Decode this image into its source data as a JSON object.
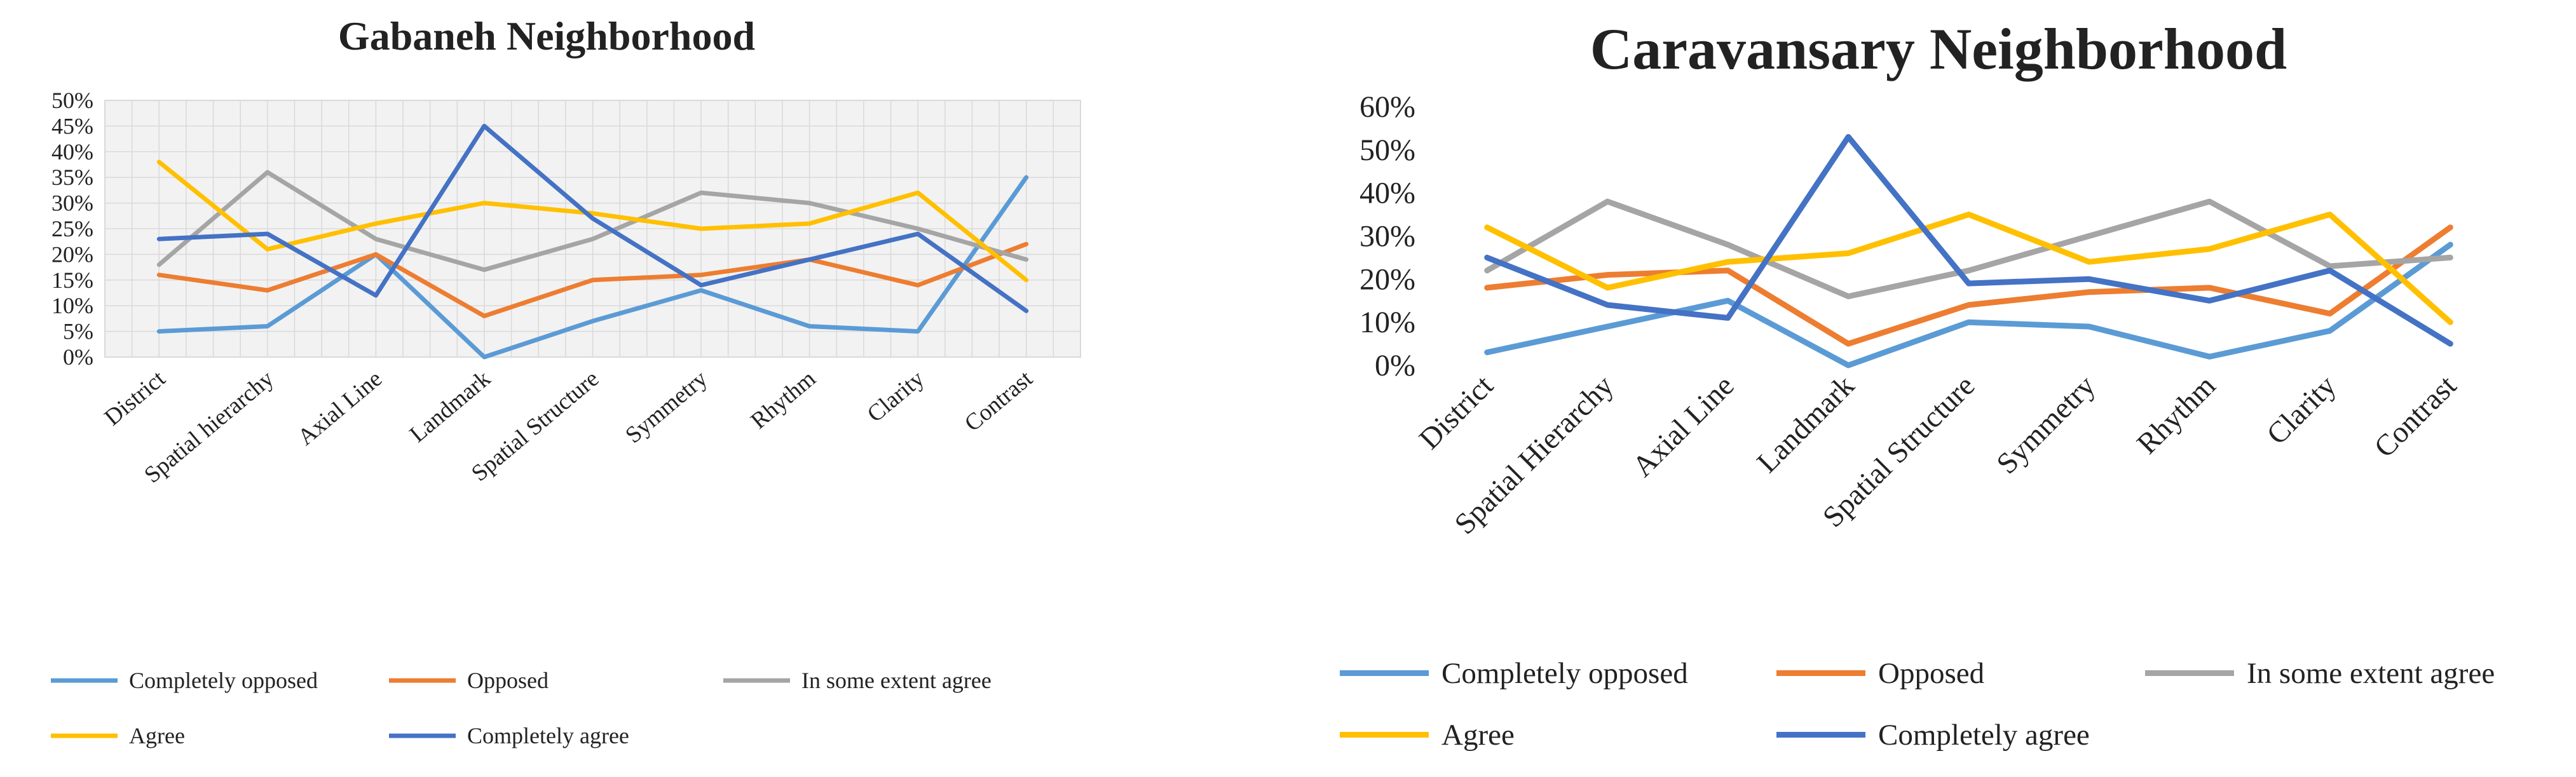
{
  "chart_data": [
    {
      "type": "line",
      "title": "Gabaneh Neighborhood",
      "xlabel": "",
      "ylabel": "",
      "ylim": [
        0,
        50
      ],
      "yticks": [
        0,
        5,
        10,
        15,
        20,
        25,
        30,
        35,
        40,
        45,
        50
      ],
      "tick_suffix": "%",
      "grid": true,
      "legend_position": "bottom",
      "categories": [
        "District",
        "Spatial hierarchy",
        "Axial Line",
        "Landmark",
        "Spatial Structure",
        "Symmetry",
        "Rhythm",
        "Clarity",
        "Contrast"
      ],
      "series": [
        {
          "name": "Completely opposed",
          "color": "#5B9BD5",
          "values": [
            5,
            6,
            20,
            0,
            7,
            13,
            6,
            5,
            35
          ]
        },
        {
          "name": "Opposed",
          "color": "#ED7D31",
          "values": [
            16,
            13,
            20,
            8,
            15,
            16,
            19,
            14,
            22
          ]
        },
        {
          "name": "In some extent agree",
          "color": "#A5A5A5",
          "values": [
            18,
            36,
            23,
            17,
            23,
            32,
            30,
            25,
            19
          ]
        },
        {
          "name": "Agree",
          "color": "#FFC000",
          "values": [
            38,
            21,
            26,
            30,
            28,
            25,
            26,
            32,
            15
          ]
        },
        {
          "name": "Completely agree",
          "color": "#4472C4",
          "values": [
            23,
            24,
            12,
            45,
            27,
            14,
            19,
            24,
            9
          ]
        }
      ]
    },
    {
      "type": "line",
      "title": "Caravansary Neighborhood",
      "xlabel": "",
      "ylabel": "",
      "ylim": [
        0,
        60
      ],
      "yticks": [
        0,
        10,
        20,
        30,
        40,
        50,
        60
      ],
      "tick_suffix": "%",
      "grid": false,
      "legend_position": "bottom",
      "categories": [
        "District",
        "Spatial Hierarchy",
        "Axial Line",
        "Landmark",
        "Spatial Structure",
        "Symmetry",
        "Rhythm",
        "Clarity",
        "Contrast"
      ],
      "series": [
        {
          "name": "Completely opposed",
          "color": "#5B9BD5",
          "values": [
            3,
            9,
            15,
            0,
            10,
            9,
            2,
            8,
            28
          ]
        },
        {
          "name": "Opposed",
          "color": "#ED7D31",
          "values": [
            18,
            21,
            22,
            5,
            14,
            17,
            18,
            12,
            32
          ]
        },
        {
          "name": "In some extent agree",
          "color": "#A5A5A5",
          "values": [
            22,
            38,
            28,
            16,
            22,
            30,
            38,
            23,
            25
          ]
        },
        {
          "name": "Agree",
          "color": "#FFC000",
          "values": [
            32,
            18,
            24,
            26,
            35,
            24,
            27,
            35,
            10
          ]
        },
        {
          "name": "Completely agree",
          "color": "#4472C4",
          "values": [
            25,
            14,
            11,
            53,
            19,
            20,
            15,
            22,
            5
          ]
        }
      ]
    }
  ]
}
